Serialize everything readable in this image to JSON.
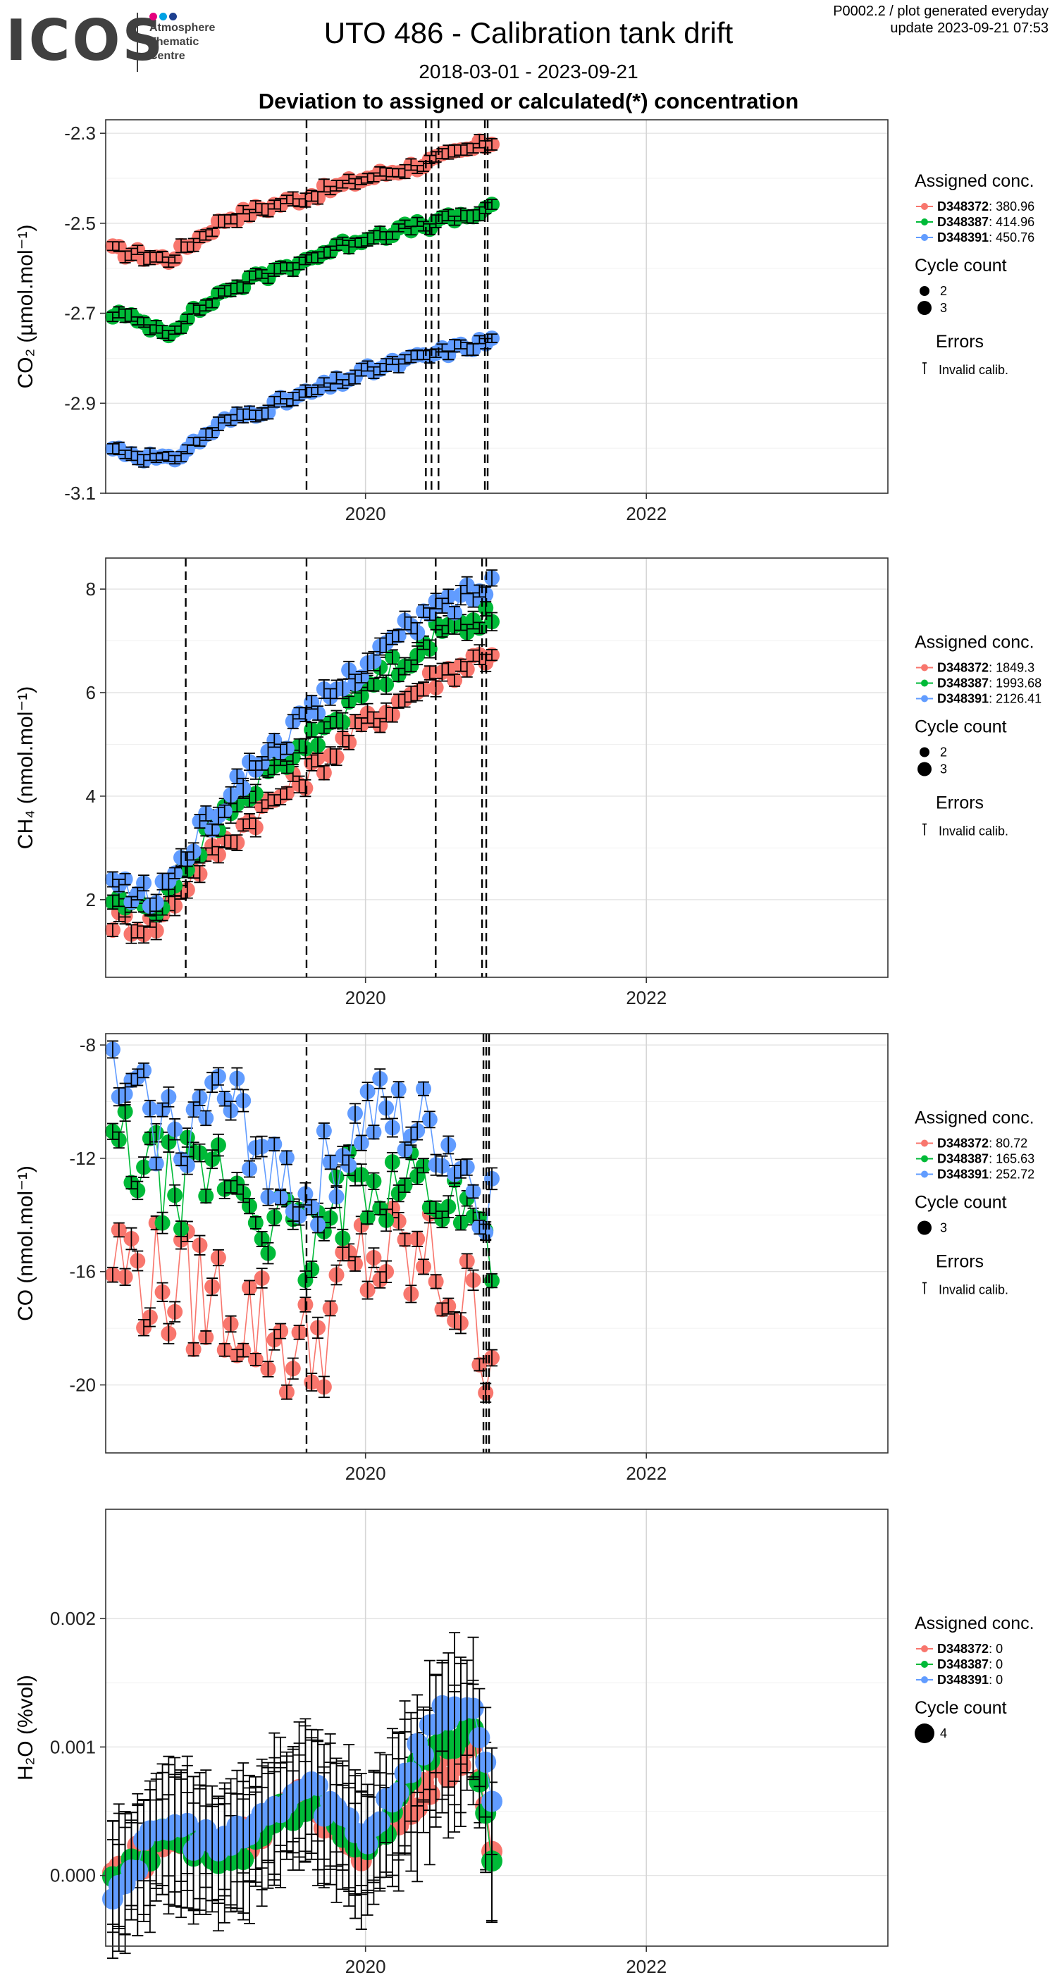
{
  "header": {
    "logo_text": "ICOS",
    "logo_subtitle_lines": [
      "Atmosphere",
      "Thematic",
      "Centre"
    ],
    "title": "UTO 486 - Calibration tank drift",
    "meta_line1": "P0002.2 / plot generated everyday",
    "meta_line2": "update  2023-09-21 07:53",
    "date_range": "2018-03-01 - 2023-09-21",
    "subtitle": "Deviation to assigned or calculated(*) concentration"
  },
  "colors": {
    "D348372": "#F8766D",
    "D348387": "#00BA38",
    "D348391": "#619CFF"
  },
  "chart_data": [
    {
      "type": "scatter",
      "ylabel": "CO₂ (µmol.mol⁻¹)",
      "xlim": [
        2018.15,
        2023.72
      ],
      "ylim": [
        -3.1,
        -2.27
      ],
      "yticks": [
        "-2.3",
        "-2.5",
        "-2.7",
        "-2.9",
        "-3.1"
      ],
      "ytick_values": [
        -2.3,
        -2.5,
        -2.7,
        -2.9,
        -3.1
      ],
      "xticks": [
        "2020",
        "2022"
      ],
      "xtick_values": [
        2020,
        2022
      ],
      "vlines": [
        2019.58,
        2020.43,
        2020.47,
        2020.52,
        2020.85,
        2020.87
      ],
      "legend": {
        "assigned_title": "Assigned conc.",
        "series": [
          {
            "name": "D348372",
            "value": ": 380.96"
          },
          {
            "name": "D348387",
            "value": ": 414.96"
          },
          {
            "name": "D348391",
            "value": ": 450.76"
          }
        ],
        "cycle_title": "Cycle count",
        "cycle_items": [
          "2",
          "3"
        ],
        "errors_title": "Errors",
        "error_items": [
          "Invalid calib."
        ]
      },
      "series_params": [
        {
          "anchors": [
            [
              2018.2,
              -2.56
            ],
            [
              2018.6,
              -2.58
            ],
            [
              2019.0,
              -2.49
            ],
            [
              2019.58,
              -2.44
            ],
            [
              2020.0,
              -2.4
            ],
            [
              2020.5,
              -2.36
            ],
            [
              2020.9,
              -2.32
            ]
          ],
          "err": 0.012,
          "noise": 0.012
        },
        {
          "anchors": [
            [
              2018.2,
              -2.7
            ],
            [
              2018.6,
              -2.74
            ],
            [
              2019.0,
              -2.65
            ],
            [
              2019.58,
              -2.58
            ],
            [
              2020.0,
              -2.53
            ],
            [
              2020.5,
              -2.5
            ],
            [
              2020.9,
              -2.47
            ]
          ],
          "err": 0.012,
          "noise": 0.012
        },
        {
          "anchors": [
            [
              2018.2,
              -3.0
            ],
            [
              2018.6,
              -3.03
            ],
            [
              2019.0,
              -2.94
            ],
            [
              2019.58,
              -2.88
            ],
            [
              2020.0,
              -2.83
            ],
            [
              2020.5,
              -2.79
            ],
            [
              2020.9,
              -2.76
            ]
          ],
          "err": 0.012,
          "noise": 0.012
        }
      ]
    },
    {
      "type": "scatter",
      "ylabel": "CH₄ (nmol.mol⁻¹)",
      "xlim": [
        2018.15,
        2023.72
      ],
      "ylim": [
        0.5,
        8.6
      ],
      "yticks": [
        "8",
        "6",
        "4",
        "2"
      ],
      "ytick_values": [
        8,
        6,
        4,
        2
      ],
      "xticks": [
        "2020",
        "2022"
      ],
      "xtick_values": [
        2020,
        2022
      ],
      "vlines": [
        2018.72,
        2019.58,
        2020.5,
        2020.83,
        2020.86
      ],
      "legend": {
        "assigned_title": "Assigned conc.",
        "series": [
          {
            "name": "D348372",
            "value": ": 1849.3"
          },
          {
            "name": "D348387",
            "value": ": 1993.68"
          },
          {
            "name": "D348391",
            "value": ": 2126.41"
          }
        ],
        "cycle_title": "Cycle count",
        "cycle_items": [
          "2",
          "3"
        ],
        "errors_title": "Errors",
        "error_items": [
          "Invalid calib."
        ]
      },
      "series_params": [
        {
          "anchors": [
            [
              2018.2,
              1.6
            ],
            [
              2018.5,
              1.5
            ],
            [
              2018.8,
              2.6
            ],
            [
              2019.2,
              3.6
            ],
            [
              2019.58,
              4.4
            ],
            [
              2020.0,
              5.4
            ],
            [
              2020.5,
              6.3
            ],
            [
              2020.9,
              6.8
            ]
          ],
          "err": 0.15,
          "noise": 0.25
        },
        {
          "anchors": [
            [
              2018.2,
              2.0
            ],
            [
              2018.5,
              1.8
            ],
            [
              2018.8,
              3.0
            ],
            [
              2019.2,
              4.2
            ],
            [
              2019.58,
              5.0
            ],
            [
              2020.0,
              6.1
            ],
            [
              2020.5,
              7.1
            ],
            [
              2020.9,
              7.6
            ]
          ],
          "err": 0.15,
          "noise": 0.25
        },
        {
          "anchors": [
            [
              2018.2,
              2.3
            ],
            [
              2018.5,
              2.0
            ],
            [
              2018.8,
              3.2
            ],
            [
              2019.2,
              4.6
            ],
            [
              2019.58,
              5.5
            ],
            [
              2020.0,
              6.6
            ],
            [
              2020.5,
              7.6
            ],
            [
              2020.9,
              8.1
            ]
          ],
          "err": 0.15,
          "noise": 0.25
        }
      ]
    },
    {
      "type": "scatter",
      "ylabel": "CO (nmol.mol⁻¹)",
      "xlim": [
        2018.15,
        2023.72
      ],
      "ylim": [
        -22.4,
        -7.6
      ],
      "yticks": [
        "-8",
        "-12",
        "-16",
        "-20"
      ],
      "ytick_values": [
        -8,
        -12,
        -16,
        -20
      ],
      "xticks": [
        "2020",
        "2022"
      ],
      "xtick_values": [
        2020,
        2022
      ],
      "vlines": [
        2019.58,
        2020.84,
        2020.86,
        2020.88
      ],
      "legend": {
        "assigned_title": "Assigned conc.",
        "series": [
          {
            "name": "D348372",
            "value": ": 80.72"
          },
          {
            "name": "D348387",
            "value": ": 165.63"
          },
          {
            "name": "D348391",
            "value": ": 252.72"
          }
        ],
        "cycle_title": "Cycle count",
        "cycle_items": [
          "3"
        ],
        "errors_title": "Errors",
        "error_items": [
          "Invalid calib."
        ]
      },
      "series_params": [
        {
          "anchors": [
            [
              2018.2,
              -15.5
            ],
            [
              2018.6,
              -16.5
            ],
            [
              2019.0,
              -17.0
            ],
            [
              2019.58,
              -19.0
            ],
            [
              2020.0,
              -15.5
            ],
            [
              2020.5,
              -15.8
            ],
            [
              2020.9,
              -18.6
            ]
          ],
          "err": 0.3,
          "noise": 2.2
        },
        {
          "anchors": [
            [
              2018.2,
              -11.5
            ],
            [
              2018.6,
              -13.0
            ],
            [
              2019.0,
              -12.5
            ],
            [
              2019.58,
              -15.5
            ],
            [
              2020.0,
              -12.5
            ],
            [
              2020.5,
              -13.0
            ],
            [
              2020.9,
              -15.0
            ]
          ],
          "err": 0.3,
          "noise": 1.6
        },
        {
          "anchors": [
            [
              2018.2,
              -9.5
            ],
            [
              2018.6,
              -11.0
            ],
            [
              2019.0,
              -10.0
            ],
            [
              2019.58,
              -13.5
            ],
            [
              2020.0,
              -10.5
            ],
            [
              2020.5,
              -11.0
            ],
            [
              2020.9,
              -13.6
            ]
          ],
          "err": 0.3,
          "noise": 1.6
        }
      ]
    },
    {
      "type": "scatter",
      "ylabel": "H₂O (%vol)",
      "xlim": [
        2018.15,
        2023.72
      ],
      "ylim": [
        -0.00055,
        0.00285
      ],
      "yticks": [
        "0.002",
        "0.001",
        "0.000"
      ],
      "ytick_values": [
        0.002,
        0.001,
        0.0
      ],
      "xticks": [
        "2020",
        "2022"
      ],
      "xtick_values": [
        2020,
        2022
      ],
      "vlines": [],
      "legend": {
        "assigned_title": "Assigned conc.",
        "series": [
          {
            "name": "D348372",
            "value": ": 0"
          },
          {
            "name": "D348387",
            "value": ": 0"
          },
          {
            "name": "D348391",
            "value": ": 0"
          }
        ],
        "cycle_title": "Cycle count",
        "cycle_items": [
          "4"
        ],
        "errors_title": "",
        "error_items": []
      },
      "series_params": [
        {
          "anchors": [
            [
              2018.2,
              0.0
            ],
            [
              2018.6,
              0.0003
            ],
            [
              2019.0,
              0.0002
            ],
            [
              2019.58,
              0.0006
            ],
            [
              2020.0,
              0.0002
            ],
            [
              2020.5,
              0.0008
            ],
            [
              2020.75,
              0.001
            ],
            [
              2020.9,
              0.0002
            ]
          ],
          "err": 0.00045,
          "noise": 0.00012
        },
        {
          "anchors": [
            [
              2018.2,
              -0.0001
            ],
            [
              2018.6,
              0.0003
            ],
            [
              2019.0,
              0.0001
            ],
            [
              2019.58,
              0.0006
            ],
            [
              2020.0,
              0.0002
            ],
            [
              2020.5,
              0.001
            ],
            [
              2020.75,
              0.0012
            ],
            [
              2020.9,
              0.0002
            ]
          ],
          "err": 0.00045,
          "noise": 0.00012
        },
        {
          "anchors": [
            [
              2018.2,
              -0.0001
            ],
            [
              2018.6,
              0.0004
            ],
            [
              2019.0,
              0.0002
            ],
            [
              2019.58,
              0.0007
            ],
            [
              2020.0,
              0.0003
            ],
            [
              2020.5,
              0.0012
            ],
            [
              2020.75,
              0.0014
            ],
            [
              2020.9,
              0.0005
            ]
          ],
          "err": 0.00045,
          "noise": 0.00012
        }
      ]
    }
  ]
}
